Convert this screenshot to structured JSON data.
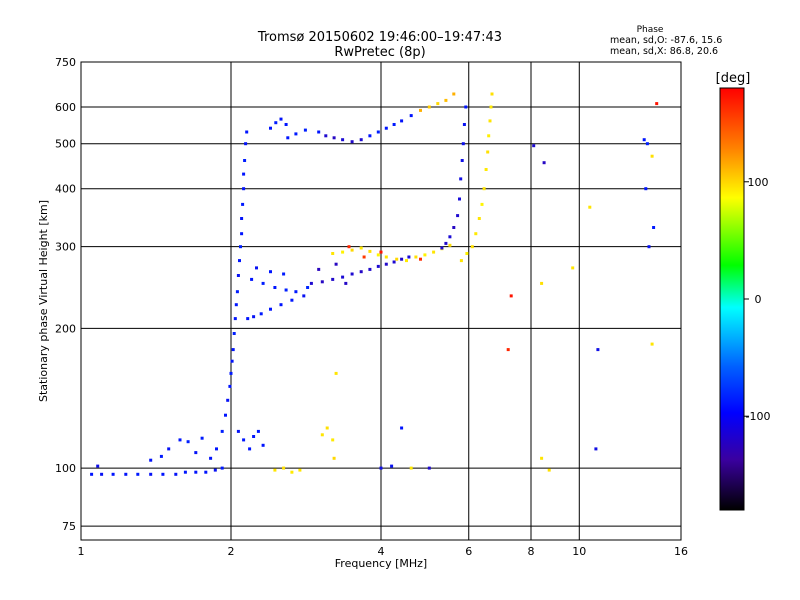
{
  "header": {
    "title": "Tromsø 20150602 19:46:00–19:47:43",
    "subtitle": "RwPretec (8p)"
  },
  "phase_box": {
    "title": "Phase",
    "line_o": "mean, sd,O: -87.6, 15.6",
    "line_x": "mean, sd,X: 86.8, 20.6"
  },
  "colorbar": {
    "unit": "[deg]",
    "range": [
      -180,
      180
    ],
    "ticks": [
      {
        "value": 100,
        "label": "100"
      },
      {
        "value": 0,
        "label": "0"
      },
      {
        "value": -100,
        "label": "-100"
      }
    ]
  },
  "chart_data": {
    "type": "scatter",
    "x_scale": "log2",
    "y_scale": "log",
    "xlabel": "Frequency [MHz]",
    "ylabel": "Stationary phase Virtual Height [km]",
    "xlim": [
      1,
      16
    ],
    "ylim": [
      70,
      750
    ],
    "xticks": [
      {
        "value": 1,
        "label": "1"
      },
      {
        "value": 2,
        "label": "2"
      },
      {
        "value": 4,
        "label": "4"
      },
      {
        "value": 6,
        "label": "6"
      },
      {
        "value": 8,
        "label": "8"
      },
      {
        "value": 10,
        "label": "10"
      },
      {
        "value": 16,
        "label": "16"
      }
    ],
    "yticks": [
      {
        "value": 75,
        "label": "75"
      },
      {
        "value": 100,
        "label": "100"
      },
      {
        "value": 200,
        "label": "200"
      },
      {
        "value": 300,
        "label": "300"
      },
      {
        "value": 400,
        "label": "400"
      },
      {
        "value": 500,
        "label": "500"
      },
      {
        "value": 600,
        "label": "600"
      },
      {
        "value": 750,
        "label": "750"
      }
    ],
    "grid": true,
    "color_by": "phase_deg",
    "points": [
      [
        1.05,
        97,
        -100
      ],
      [
        1.1,
        97,
        -105
      ],
      [
        1.16,
        97,
        -100
      ],
      [
        1.23,
        97,
        -102
      ],
      [
        1.3,
        97,
        -98
      ],
      [
        1.38,
        97,
        -104
      ],
      [
        1.46,
        97,
        -100
      ],
      [
        1.55,
        97,
        -103
      ],
      [
        1.62,
        98,
        -99
      ],
      [
        1.7,
        98,
        -101
      ],
      [
        1.78,
        98,
        -100
      ],
      [
        1.86,
        99,
        -105
      ],
      [
        1.92,
        100,
        -98
      ],
      [
        1.08,
        101,
        -110
      ],
      [
        1.38,
        104,
        -102
      ],
      [
        1.45,
        106,
        -98
      ],
      [
        1.5,
        110,
        -104
      ],
      [
        1.58,
        115,
        -100
      ],
      [
        1.64,
        114,
        -95
      ],
      [
        1.7,
        108,
        -103
      ],
      [
        1.75,
        116,
        -97
      ],
      [
        1.82,
        105,
        -102
      ],
      [
        1.87,
        110,
        -100
      ],
      [
        1.92,
        120,
        -95
      ],
      [
        1.95,
        130,
        -100
      ],
      [
        1.97,
        140,
        -104
      ],
      [
        1.99,
        150,
        -100
      ],
      [
        2.0,
        160,
        -98
      ],
      [
        2.01,
        170,
        -102
      ],
      [
        2.02,
        180,
        -100
      ],
      [
        2.03,
        195,
        -96
      ],
      [
        2.04,
        210,
        -101
      ],
      [
        2.05,
        225,
        -100
      ],
      [
        2.06,
        240,
        -97
      ],
      [
        2.07,
        260,
        -105
      ],
      [
        2.08,
        280,
        -100
      ],
      [
        2.09,
        300,
        -95
      ],
      [
        2.1,
        320,
        -100
      ],
      [
        2.1,
        345,
        -102
      ],
      [
        2.11,
        370,
        -98
      ],
      [
        2.12,
        400,
        -101
      ],
      [
        2.12,
        430,
        -100
      ],
      [
        2.13,
        460,
        -96
      ],
      [
        2.14,
        500,
        -102
      ],
      [
        2.15,
        530,
        -100
      ],
      [
        2.07,
        120,
        -103
      ],
      [
        2.12,
        115,
        -99
      ],
      [
        2.18,
        110,
        -100
      ],
      [
        2.22,
        117,
        -101
      ],
      [
        2.27,
        120,
        -98
      ],
      [
        2.32,
        112,
        -100
      ],
      [
        2.16,
        210,
        -100
      ],
      [
        2.22,
        212,
        -104
      ],
      [
        2.3,
        215,
        -98
      ],
      [
        2.4,
        220,
        -101
      ],
      [
        2.52,
        225,
        -100
      ],
      [
        2.65,
        230,
        -99
      ],
      [
        2.8,
        235,
        -105
      ],
      [
        2.2,
        255,
        -100
      ],
      [
        2.32,
        250,
        -96
      ],
      [
        2.45,
        245,
        -100
      ],
      [
        2.58,
        242,
        -95
      ],
      [
        2.7,
        240,
        -98
      ],
      [
        2.85,
        245,
        -92
      ],
      [
        2.25,
        270,
        -105
      ],
      [
        2.4,
        265,
        -100
      ],
      [
        2.55,
        262,
        -97
      ],
      [
        2.9,
        250,
        -120
      ],
      [
        3.05,
        252,
        -125
      ],
      [
        3.2,
        255,
        -122
      ],
      [
        3.35,
        258,
        -118
      ],
      [
        3.5,
        262,
        -120
      ],
      [
        3.65,
        265,
        -124
      ],
      [
        3.8,
        268,
        -121
      ],
      [
        3.95,
        272,
        -119
      ],
      [
        4.1,
        275,
        -123
      ],
      [
        4.25,
        278,
        -120
      ],
      [
        4.4,
        282,
        -122
      ],
      [
        4.55,
        285,
        -118
      ],
      [
        3.0,
        268,
        -128
      ],
      [
        3.25,
        275,
        -126
      ],
      [
        3.4,
        250,
        -124
      ],
      [
        3.2,
        290,
        110
      ],
      [
        3.35,
        292,
        105
      ],
      [
        3.5,
        295,
        115
      ],
      [
        3.65,
        298,
        108
      ],
      [
        3.8,
        293,
        112
      ],
      [
        3.95,
        288,
        104
      ],
      [
        4.1,
        285,
        110
      ],
      [
        4.3,
        282,
        115
      ],
      [
        4.5,
        280,
        108
      ],
      [
        4.7,
        285,
        112
      ],
      [
        4.9,
        288,
        105
      ],
      [
        5.1,
        292,
        110
      ],
      [
        5.3,
        297,
        108
      ],
      [
        5.5,
        302,
        112
      ],
      [
        3.45,
        300,
        170
      ],
      [
        3.7,
        285,
        165
      ],
      [
        4.0,
        292,
        175
      ],
      [
        4.8,
        282,
        168
      ],
      [
        2.6,
        515,
        -100
      ],
      [
        2.7,
        525,
        -98
      ],
      [
        2.4,
        540,
        -101
      ],
      [
        2.46,
        555,
        -97
      ],
      [
        2.52,
        565,
        -102
      ],
      [
        2.58,
        550,
        -100
      ],
      [
        2.82,
        535,
        -95
      ],
      [
        3.0,
        530,
        -100
      ],
      [
        3.1,
        520,
        -120
      ],
      [
        3.22,
        515,
        -125
      ],
      [
        3.35,
        510,
        -118
      ],
      [
        3.5,
        505,
        -122
      ],
      [
        3.65,
        510,
        -120
      ],
      [
        3.8,
        520,
        -100
      ],
      [
        3.95,
        530,
        -95
      ],
      [
        4.1,
        540,
        -100
      ],
      [
        4.25,
        550,
        -98
      ],
      [
        4.4,
        560,
        -102
      ],
      [
        4.6,
        575,
        -100
      ],
      [
        4.8,
        590,
        130
      ],
      [
        5.0,
        600,
        120
      ],
      [
        5.2,
        610,
        115
      ],
      [
        5.4,
        620,
        125
      ],
      [
        5.6,
        640,
        130
      ],
      [
        5.75,
        380,
        -115
      ],
      [
        5.7,
        350,
        -120
      ],
      [
        5.6,
        330,
        -125
      ],
      [
        5.5,
        315,
        -118
      ],
      [
        5.4,
        305,
        -122
      ],
      [
        5.3,
        298,
        -120
      ],
      [
        5.78,
        420,
        -112
      ],
      [
        5.82,
        460,
        -110
      ],
      [
        5.85,
        500,
        -108
      ],
      [
        5.88,
        550,
        -105
      ],
      [
        5.92,
        600,
        -100
      ],
      [
        5.8,
        280,
        110
      ],
      [
        5.95,
        290,
        105
      ],
      [
        6.1,
        300,
        112
      ],
      [
        6.2,
        320,
        108
      ],
      [
        6.3,
        345,
        110
      ],
      [
        6.38,
        370,
        104
      ],
      [
        6.44,
        400,
        110
      ],
      [
        6.5,
        440,
        108
      ],
      [
        6.55,
        480,
        112
      ],
      [
        6.58,
        520,
        106
      ],
      [
        6.62,
        560,
        110
      ],
      [
        6.65,
        600,
        108
      ],
      [
        6.68,
        640,
        112
      ],
      [
        3.05,
        118,
        110
      ],
      [
        3.12,
        122,
        112
      ],
      [
        3.2,
        115,
        108
      ],
      [
        3.22,
        105,
        115
      ],
      [
        2.45,
        99,
        110
      ],
      [
        2.55,
        100,
        112
      ],
      [
        2.65,
        98,
        108
      ],
      [
        2.75,
        99,
        110
      ],
      [
        4.0,
        100,
        -110
      ],
      [
        4.2,
        101,
        -105
      ],
      [
        4.4,
        122,
        -100
      ],
      [
        4.6,
        100,
        108
      ],
      [
        5.0,
        100,
        -120
      ],
      [
        3.25,
        160,
        110
      ],
      [
        7.2,
        180,
        170
      ],
      [
        7.3,
        235,
        175
      ],
      [
        8.1,
        495,
        -120
      ],
      [
        8.5,
        455,
        -125
      ],
      [
        8.4,
        250,
        112
      ],
      [
        8.7,
        99,
        112
      ],
      [
        8.4,
        105,
        110
      ],
      [
        10.5,
        365,
        110
      ],
      [
        10.9,
        180,
        -110
      ],
      [
        10.8,
        110,
        -112
      ],
      [
        9.7,
        270,
        110
      ],
      [
        13.5,
        510,
        -100
      ],
      [
        13.7,
        500,
        -95
      ],
      [
        13.6,
        400,
        -100
      ],
      [
        14.1,
        330,
        -98
      ],
      [
        14.3,
        610,
        175
      ],
      [
        13.8,
        300,
        -105
      ],
      [
        14.0,
        185,
        110
      ],
      [
        14.0,
        470,
        112
      ]
    ]
  }
}
